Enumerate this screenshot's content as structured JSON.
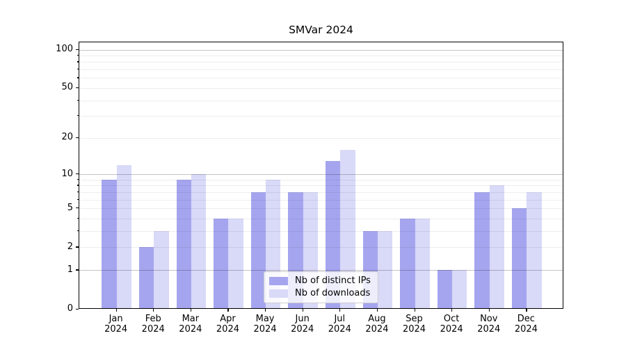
{
  "title": "SMVar 2024",
  "colors": {
    "series_ips": "#a5a5ef",
    "series_downloads": "#d9d9f8",
    "axis": "#000000",
    "legend_border": "#cccccc"
  },
  "chart_data": {
    "type": "bar",
    "title": "SMVar 2024",
    "scale": "log1p",
    "grid": true,
    "legend_position": "lower center",
    "categories": [
      "Jan",
      "Feb",
      "Mar",
      "Apr",
      "May",
      "Jun",
      "Jul",
      "Aug",
      "Sep",
      "Oct",
      "Nov",
      "Dec"
    ],
    "x_tick_year": "2024",
    "series": [
      {
        "name": "Nb of distinct IPs",
        "color": "#a5a5ef",
        "values": [
          9,
          2,
          9,
          4,
          7,
          7,
          13,
          3,
          4,
          1,
          7,
          5
        ]
      },
      {
        "name": "Nb of downloads",
        "color": "#d9d9f8",
        "values": [
          12,
          3,
          10,
          4,
          9,
          7,
          16,
          3,
          4,
          1,
          8,
          7
        ]
      }
    ],
    "ylim": [
      0,
      114
    ],
    "y_ticks": [
      0,
      1,
      2,
      5,
      10,
      20,
      50,
      100
    ],
    "y_major_gridlines": [
      1,
      10,
      100
    ],
    "y_minor_gridlines": [
      2,
      3,
      4,
      5,
      6,
      7,
      8,
      9,
      20,
      30,
      40,
      50,
      60,
      70,
      80,
      90
    ]
  }
}
